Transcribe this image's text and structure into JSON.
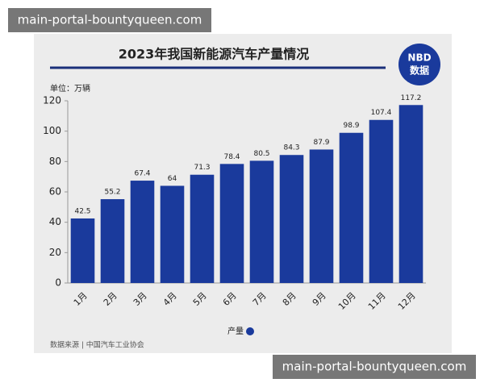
{
  "chart_data": {
    "type": "bar",
    "title": "2023年我国新能源汽车产量情况",
    "y_axis_label": "单位：万辆",
    "source": "数据来源 | 中国汽车工业协会",
    "categories": [
      "1月",
      "2月",
      "3月",
      "4月",
      "5月",
      "6月",
      "7月",
      "8月",
      "9月",
      "10月",
      "11月",
      "12月"
    ],
    "series": [
      {
        "name": "产量",
        "color": "#1a3a9c",
        "values": [
          42.5,
          55.2,
          67.4,
          64,
          71.3,
          78.4,
          80.5,
          84.3,
          87.9,
          98.9,
          107.4,
          117.2
        ]
      }
    ],
    "ylim": [
      0,
      120
    ],
    "yticks": [
      0,
      20,
      40,
      60,
      80,
      100,
      120
    ],
    "grid": false,
    "legend": "bottom"
  },
  "logo": {
    "line1": "NBD",
    "line2": "数据"
  },
  "overlays": [
    "main-portal-bountyqueen.com",
    "main-portal-bountyqueen.com"
  ]
}
